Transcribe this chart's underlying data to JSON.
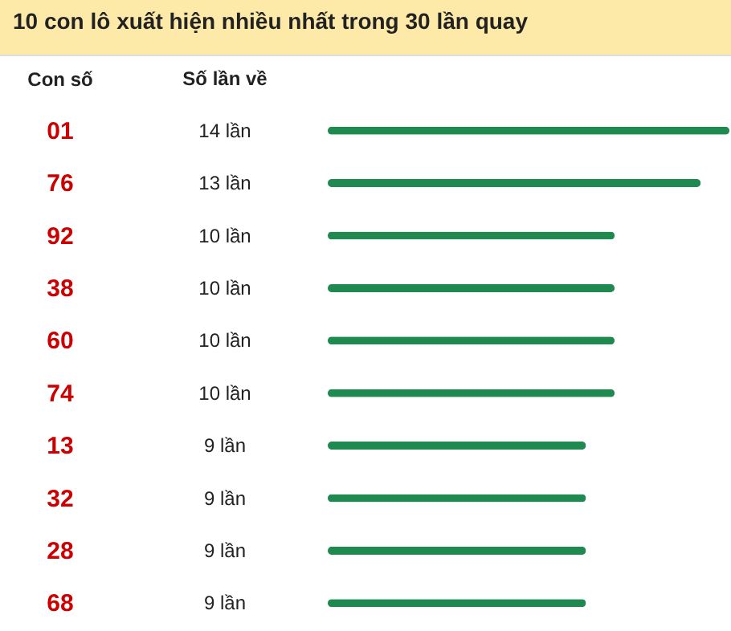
{
  "chart_data": {
    "type": "bar",
    "orientation": "horizontal",
    "title": "10 con lô xuất hiện nhiều nhất trong 30 lần quay",
    "ylabel": "Con số",
    "annotations": [
      "Số lần về"
    ],
    "categories": [
      "01",
      "76",
      "92",
      "38",
      "60",
      "74",
      "13",
      "32",
      "28",
      "68"
    ],
    "values": [
      14,
      13,
      10,
      10,
      10,
      10,
      9,
      9,
      9,
      9
    ],
    "value_labels": [
      "14 lần",
      "13 lần",
      "10 lần",
      "10 lần",
      "10 lần",
      "10 lần",
      "9 lần",
      "9 lần",
      "9 lần",
      "9 lần"
    ],
    "color": "#1f8a4f"
  }
}
